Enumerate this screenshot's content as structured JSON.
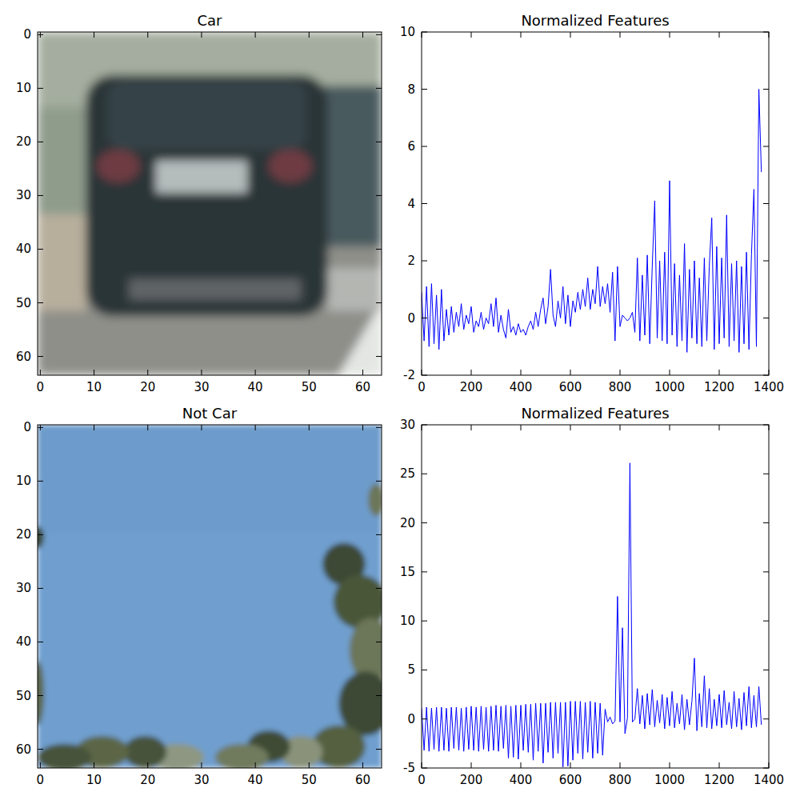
{
  "chart_data": [
    {
      "type": "image",
      "title": "Car",
      "xlim": [
        -0.5,
        63.5
      ],
      "ylim": [
        63.5,
        -0.5
      ],
      "xticks": [
        0,
        10,
        20,
        30,
        40,
        50,
        60
      ],
      "yticks": [
        0,
        10,
        20,
        30,
        40,
        50,
        60
      ]
    },
    {
      "type": "line",
      "title": "Normalized Features",
      "color": "#0000ff",
      "xlim": [
        0,
        1400
      ],
      "ylim": [
        -2,
        10
      ],
      "xticks": [
        0,
        200,
        400,
        600,
        800,
        1000,
        1200,
        1400
      ],
      "yticks": [
        -2,
        0,
        2,
        4,
        6,
        8,
        10
      ],
      "x": [
        0,
        10,
        20,
        30,
        40,
        50,
        60,
        70,
        80,
        90,
        100,
        110,
        120,
        130,
        140,
        150,
        160,
        170,
        180,
        190,
        200,
        210,
        220,
        230,
        240,
        250,
        260,
        270,
        280,
        290,
        300,
        310,
        320,
        330,
        340,
        350,
        360,
        370,
        380,
        390,
        400,
        410,
        420,
        430,
        440,
        450,
        460,
        470,
        480,
        490,
        500,
        510,
        520,
        530,
        540,
        550,
        560,
        570,
        580,
        590,
        600,
        610,
        620,
        630,
        640,
        650,
        660,
        670,
        680,
        690,
        700,
        710,
        720,
        730,
        740,
        750,
        760,
        770,
        780,
        790,
        800,
        810,
        820,
        830,
        840,
        850,
        860,
        870,
        880,
        890,
        900,
        910,
        920,
        930,
        940,
        950,
        960,
        970,
        980,
        990,
        1000,
        1010,
        1020,
        1030,
        1040,
        1050,
        1060,
        1070,
        1080,
        1090,
        1100,
        1110,
        1120,
        1130,
        1140,
        1150,
        1160,
        1170,
        1180,
        1190,
        1200,
        1210,
        1220,
        1230,
        1240,
        1250,
        1260,
        1270,
        1280,
        1290,
        1300,
        1310,
        1320,
        1330,
        1340,
        1350,
        1360,
        1370
      ],
      "values": [
        0.9,
        -0.8,
        1.1,
        -1.0,
        1.2,
        -0.9,
        0.8,
        -1.1,
        1.0,
        -0.8,
        0.3,
        -0.6,
        0.4,
        -0.5,
        0.2,
        -0.3,
        0.5,
        -0.4,
        0.1,
        -0.2,
        0.4,
        -0.5,
        -0.1,
        -0.3,
        0.2,
        -0.4,
        0.0,
        -0.2,
        0.5,
        -0.3,
        0.7,
        -0.5,
        0.1,
        -0.4,
        -0.7,
        0.3,
        -0.5,
        -0.3,
        -0.6,
        -0.2,
        -0.5,
        -0.4,
        -0.6,
        -0.3,
        -0.1,
        -0.4,
        0.2,
        -0.3,
        0.3,
        0.7,
        -0.2,
        0.4,
        1.7,
        0.1,
        -0.3,
        0.6,
        0.0,
        1.1,
        -0.2,
        0.8,
        -0.3,
        0.6,
        0.2,
        0.9,
        0.3,
        1.0,
        0.4,
        1.4,
        0.3,
        1.0,
        0.5,
        1.8,
        0.4,
        1.1,
        0.5,
        1.2,
        0.2,
        1.6,
        -0.8,
        1.8,
        -0.3,
        0.1,
        0.0,
        -0.1,
        0.0,
        0.2,
        -0.5,
        2.1,
        -0.8,
        1.5,
        -0.6,
        2.2,
        -0.9,
        1.8,
        4.1,
        -0.7,
        2.0,
        -0.8,
        2.3,
        -0.9,
        4.8,
        -0.6,
        1.9,
        -1.0,
        1.5,
        -0.8,
        2.6,
        -1.2,
        1.7,
        -0.7,
        2.0,
        -0.9,
        1.4,
        -1.0,
        2.1,
        -0.8,
        1.8,
        3.5,
        -1.1,
        2.5,
        -0.9,
        2.1,
        -0.7,
        3.6,
        -1.0,
        1.9,
        -0.8,
        2.0,
        -1.2,
        1.8,
        -0.9,
        2.3,
        -1.1,
        2.2,
        4.5,
        -1.0,
        8.0,
        5.1
      ]
    },
    {
      "type": "image",
      "title": "Not Car",
      "xlim": [
        -0.5,
        63.5
      ],
      "ylim": [
        63.5,
        -0.5
      ],
      "xticks": [
        0,
        10,
        20,
        30,
        40,
        50,
        60
      ],
      "yticks": [
        0,
        10,
        20,
        30,
        40,
        50,
        60
      ]
    },
    {
      "type": "line",
      "title": "Normalized Features",
      "color": "#0000ff",
      "xlim": [
        0,
        1400
      ],
      "ylim": [
        -5,
        30
      ],
      "xticks": [
        0,
        200,
        400,
        600,
        800,
        1000,
        1200,
        1400
      ],
      "yticks": [
        -5,
        0,
        5,
        10,
        15,
        20,
        25,
        30
      ],
      "x": [
        0,
        10,
        20,
        30,
        40,
        50,
        60,
        70,
        80,
        90,
        100,
        110,
        120,
        130,
        140,
        150,
        160,
        170,
        180,
        190,
        200,
        210,
        220,
        230,
        240,
        250,
        260,
        270,
        280,
        290,
        300,
        310,
        320,
        330,
        340,
        350,
        360,
        370,
        380,
        390,
        400,
        410,
        420,
        430,
        440,
        450,
        460,
        470,
        480,
        490,
        500,
        510,
        520,
        530,
        540,
        550,
        560,
        570,
        580,
        590,
        600,
        610,
        620,
        630,
        640,
        650,
        660,
        670,
        680,
        690,
        700,
        710,
        720,
        730,
        740,
        750,
        760,
        770,
        780,
        790,
        800,
        810,
        820,
        830,
        840,
        850,
        860,
        870,
        880,
        890,
        900,
        910,
        920,
        930,
        940,
        950,
        960,
        970,
        980,
        990,
        1000,
        1010,
        1020,
        1030,
        1040,
        1050,
        1060,
        1070,
        1080,
        1090,
        1100,
        1110,
        1120,
        1130,
        1140,
        1150,
        1160,
        1170,
        1180,
        1190,
        1200,
        1210,
        1220,
        1230,
        1240,
        1250,
        1260,
        1270,
        1280,
        1290,
        1300,
        1310,
        1320,
        1330,
        1340,
        1350,
        1360,
        1370
      ],
      "values": [
        1.1,
        -3.2,
        1.2,
        -3.3,
        1.1,
        -3.1,
        1.2,
        -3.3,
        1.2,
        -3.2,
        1.1,
        -3.3,
        1.2,
        -3.0,
        1.2,
        -3.2,
        1.1,
        -3.3,
        1.2,
        -3.1,
        1.3,
        -3.2,
        1.2,
        -3.3,
        1.3,
        -3.1,
        1.2,
        -3.3,
        1.3,
        -3.2,
        1.4,
        -3.3,
        1.3,
        -3.0,
        1.4,
        -4.0,
        1.3,
        -3.9,
        1.4,
        -4.1,
        1.4,
        -3.2,
        1.5,
        -3.4,
        1.5,
        -4.2,
        1.6,
        -3.3,
        1.6,
        -4.5,
        1.6,
        -3.4,
        1.7,
        -4.0,
        1.7,
        -3.5,
        1.7,
        -4.9,
        1.7,
        -4.8,
        1.8,
        -4.2,
        1.8,
        -3.5,
        1.8,
        -4.1,
        1.7,
        -3.4,
        1.8,
        -4.0,
        1.7,
        -3.5,
        1.6,
        -3.7,
        1.0,
        -0.3,
        0.2,
        -0.5,
        -0.2,
        12.5,
        -0.3,
        9.3,
        -1.5,
        0.1,
        26.1,
        -0.3,
        0.0,
        3.1,
        -0.5,
        2.4,
        -1.0,
        2.6,
        -0.6,
        3.0,
        -0.8,
        1.9,
        -0.4,
        2.5,
        -1.0,
        2.2,
        -0.7,
        2.8,
        -0.9,
        1.6,
        -0.5,
        2.5,
        -1.1,
        2.0,
        -0.6,
        1.8,
        6.2,
        -1.2,
        2.6,
        -0.8,
        4.4,
        -0.9,
        3.1,
        -1.0,
        2.0,
        -0.7,
        2.5,
        -0.9,
        2.9,
        -0.6,
        1.7,
        -1.0,
        2.8,
        -0.8,
        2.1,
        -1.1,
        2.7,
        -0.7,
        3.3,
        -0.9,
        2.4,
        -0.8,
        3.3,
        -0.6
      ]
    }
  ]
}
